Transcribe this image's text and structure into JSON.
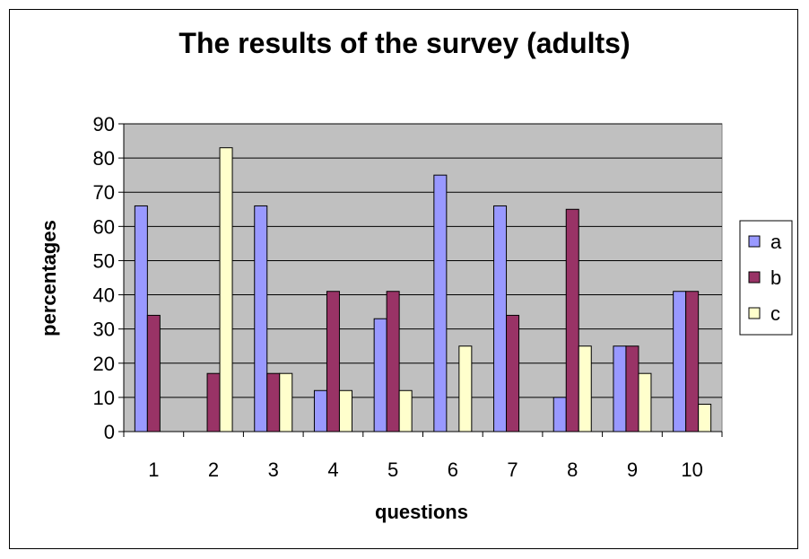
{
  "chart_data": {
    "type": "bar",
    "title": "The results of the survey (adults)",
    "xlabel": "questions",
    "ylabel": "percentages",
    "ylim": [
      0,
      90
    ],
    "yticks": [
      0,
      10,
      20,
      30,
      40,
      50,
      60,
      70,
      80,
      90
    ],
    "categories": [
      "1",
      "2",
      "3",
      "4",
      "5",
      "6",
      "7",
      "8",
      "9",
      "10"
    ],
    "series": [
      {
        "name": "a",
        "color": "#9999FF",
        "values": [
          66,
          0,
          66,
          12,
          33,
          75,
          66,
          10,
          25,
          41
        ]
      },
      {
        "name": "b",
        "color": "#993366",
        "values": [
          34,
          17,
          17,
          41,
          41,
          0,
          34,
          65,
          25,
          41
        ]
      },
      {
        "name": "c",
        "color": "#FFFFCC",
        "values": [
          0,
          83,
          17,
          12,
          12,
          25,
          0,
          25,
          17,
          8
        ]
      }
    ],
    "plot_background": "#C0C0C0",
    "grid": true,
    "legend": "right"
  }
}
